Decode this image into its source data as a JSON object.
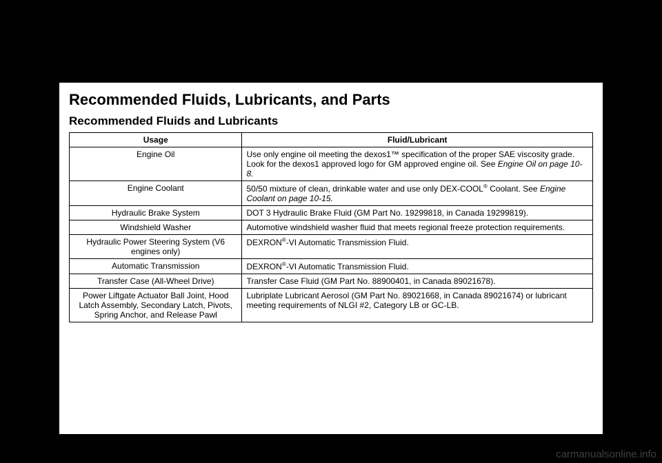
{
  "title": "Recommended Fluids, Lubricants, and Parts",
  "subtitle": "Recommended Fluids and Lubricants",
  "columns": [
    "Usage",
    "Fluid/Lubricant"
  ],
  "rows": [
    {
      "usage": "Engine Oil",
      "fluid_pre": "Use only engine oil meeting the dexos1™ specification of the proper SAE viscosity grade. Look for the dexos1 approved logo for GM approved engine oil. See ",
      "fluid_ref": "Engine Oil on page 10-8.",
      "fluid_post": ""
    },
    {
      "usage": "Engine Coolant",
      "fluid_pre": "50/50 mixture of clean, drinkable water and use only DEX-COOL",
      "fluid_sup": "®",
      "fluid_mid": " Coolant. See ",
      "fluid_ref": "Engine Coolant on page 10-15.",
      "fluid_post": ""
    },
    {
      "usage": "Hydraulic Brake System",
      "fluid_pre": "DOT 3 Hydraulic Brake Fluid (GM Part No. 19299818, in Canada 19299819).",
      "fluid_ref": "",
      "fluid_post": ""
    },
    {
      "usage": "Windshield Washer",
      "fluid_pre": "Automotive windshield washer fluid that meets regional freeze protection requirements.",
      "fluid_ref": "",
      "fluid_post": ""
    },
    {
      "usage": "Hydraulic Power Steering System (V6 engines only)",
      "fluid_pre": "DEXRON",
      "fluid_sup": "®",
      "fluid_mid": "-VI Automatic Transmission Fluid.",
      "fluid_ref": "",
      "fluid_post": ""
    },
    {
      "usage": "Automatic Transmission",
      "fluid_pre": "DEXRON",
      "fluid_sup": "®",
      "fluid_mid": "-VI Automatic Transmission Fluid.",
      "fluid_ref": "",
      "fluid_post": ""
    },
    {
      "usage": "Transfer Case (All-Wheel Drive)",
      "fluid_pre": "Transfer Case Fluid (GM Part No. 88900401, in Canada 89021678).",
      "fluid_ref": "",
      "fluid_post": ""
    },
    {
      "usage": "Power Liftgate Actuator Ball Joint, Hood Latch Assembly, Secondary Latch, Pivots, Spring Anchor, and Release Pawl",
      "fluid_pre": "Lubriplate Lubricant Aerosol (GM Part No. 89021668, in Canada 89021674) or lubricant meeting requirements of NLGI #2, Category LB or GC-LB.",
      "fluid_ref": "",
      "fluid_post": ""
    }
  ],
  "watermark": "carmanualsonline.info",
  "colors": {
    "page_bg": "#ffffff",
    "body_bg": "#000000",
    "text": "#000000",
    "border": "#000000",
    "watermark": "#6b6b6b"
  }
}
